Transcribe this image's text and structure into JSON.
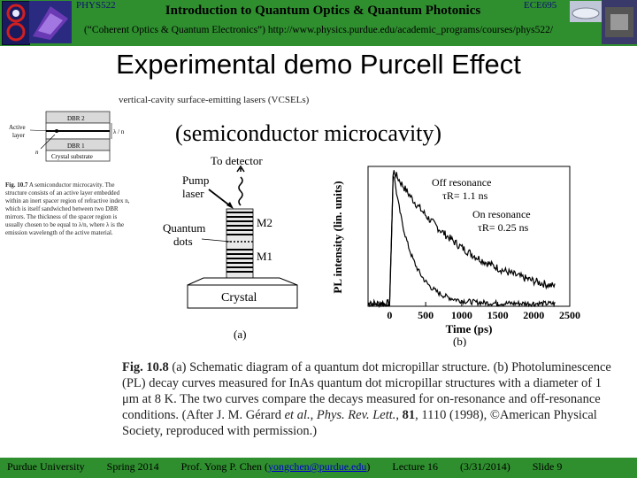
{
  "header": {
    "course_left": "PHYS522",
    "course_right": "ECE695",
    "title": "Introduction to Quantum Optics & Quantum Photonics",
    "subtitle": "(“Coherent Optics & Quantum Electronics”) http://www.physics.purdue.edu/academic_programs/courses/phys522/"
  },
  "slide": {
    "title": "Experimental demo Purcell Effect",
    "vcsel_caption": "vertical-cavity surface-emitting lasers (VCSELs)",
    "semiconductor_label": "(semiconductor microcavity)"
  },
  "fig107": {
    "labels": {
      "dbr2": "DBR 2",
      "dbr1": "DBR 1",
      "active": "Active",
      "layer": "layer",
      "n": "n",
      "lambda_n": "λ / n",
      "substrate": "Crystal substrate"
    },
    "caption_bold": "Fig. 10.7",
    "caption": " A semiconductor microcavity. The structure consists of an active layer embedded within an inert spacer region of refractive index n, which is itself sandwiched between two DBR mirrors. The thickness of the spacer region is usually chosen to be equal to λ/n, where λ is the emission wavelength of the active material."
  },
  "fig108a": {
    "to_detector": "To detector",
    "pump": "Pump",
    "laser": "laser",
    "quantum": "Quantum",
    "dots": "dots",
    "m2": "M2",
    "m1": "M1",
    "crystal": "Crystal",
    "panel_label": "(a)"
  },
  "chart_data": {
    "type": "line",
    "xlabel": "Time (ps)",
    "ylabel": "PL intensity (lin. units)",
    "xlim": [
      -300,
      2500
    ],
    "ylim": [
      0,
      1.05
    ],
    "x_ticks": [
      "0",
      "500",
      "1000",
      "1500",
      "2000",
      "2500"
    ],
    "x_tick_values": [
      0,
      500,
      1000,
      1500,
      2000,
      2500
    ],
    "panel_label": "(b)",
    "annotations": [
      {
        "line1": "Off resonance",
        "line2": "τR= 1.1 ns"
      },
      {
        "line1": "On resonance",
        "line2": "τR= 0.25 ns"
      }
    ],
    "series": [
      {
        "tau_ps": 1100,
        "onset_ps": 50,
        "offset": 0.02
      },
      {
        "tau_ps": 250,
        "onset_ps": 50,
        "offset": 0.02
      }
    ],
    "grid": false
  },
  "fig108": {
    "caption_bold": "Fig. 10.8",
    "caption_part1": " (a) Schematic diagram of a quantum dot micropillar structure. (b) Photoluminescence (PL) decay curves measured for InAs quantum dot micropillar structures with a diameter of 1 μm at 8 K. The two curves compare the decays measured for on-resonance and off-resonance conditions. (After J. M. Gérard ",
    "caption_italic1": "et al.",
    "caption_part2": ", ",
    "caption_italic2": "Phys. Rev. Lett.",
    "caption_part3": ", ",
    "caption_bold2": "81",
    "caption_part4": ", 1110 (1998), ©American Physical Society, reproduced with permission.)"
  },
  "footer": {
    "university": "Purdue University",
    "term": "Spring 2014",
    "prof_prefix": "Prof. Yong P. Chen (",
    "email": "yongchen@purdue.edu",
    "prof_suffix": ")",
    "lecture": "Lecture 16",
    "date": "(3/31/2014)",
    "slide": "Slide 9"
  },
  "colors": {
    "header_green": "#2f8f2f",
    "link_blue": "#0000cc"
  }
}
